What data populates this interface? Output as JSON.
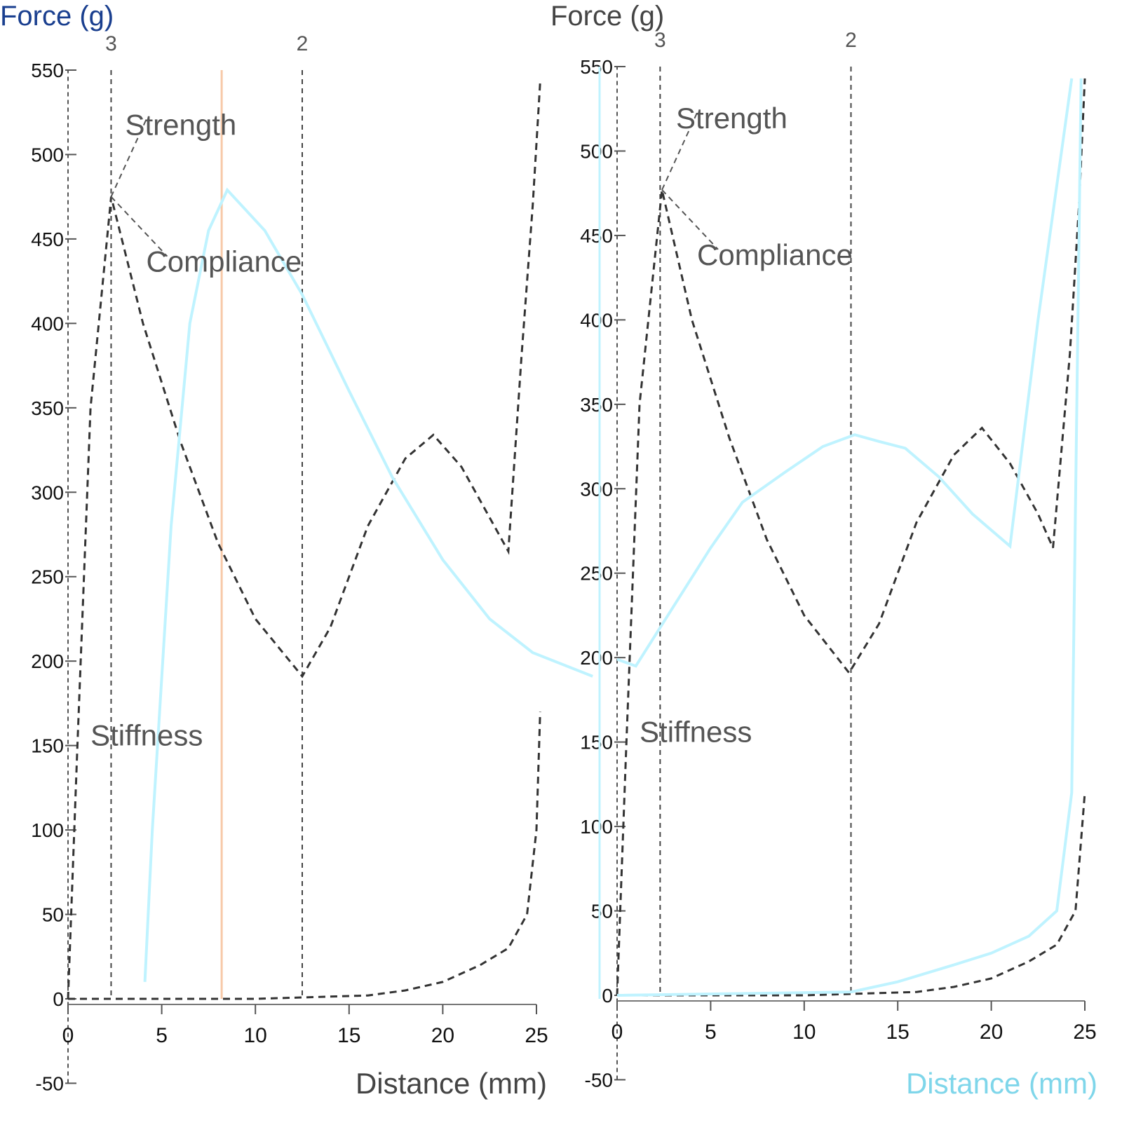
{
  "chart_data": [
    {
      "type": "line",
      "title": "",
      "xlabel": "Distance (mm)",
      "ylabel": "Force (g)",
      "xlim": [
        0,
        25
      ],
      "ylim": [
        -50,
        550
      ],
      "xticks": [
        0,
        5,
        10,
        15,
        20,
        25
      ],
      "yticks": [
        -50,
        0,
        50,
        100,
        150,
        200,
        250,
        300,
        350,
        400,
        450,
        500,
        550
      ],
      "grid": false,
      "markers": [
        {
          "x": 2.3,
          "label": "3"
        },
        {
          "x": 12.5,
          "label": "2"
        }
      ],
      "highlight_x": 8.2,
      "annotations": [
        {
          "text": "Strength",
          "x": 2.3,
          "y": 475
        },
        {
          "text": "Compliance",
          "x": 2.3,
          "y": 475
        },
        {
          "text": "Stiffness",
          "x": 1.0,
          "y": 150
        }
      ],
      "series": [
        {
          "style": "dashed",
          "color": "#333333",
          "x": [
            0,
            0.5,
            1.2,
            2.3,
            4,
            6,
            8,
            10,
            12.5,
            14,
            16,
            18,
            19.5,
            21,
            22.5,
            23.5,
            24.2,
            24.8,
            25.2
          ],
          "y": [
            0,
            150,
            350,
            475,
            400,
            330,
            270,
            225,
            191,
            220,
            280,
            320,
            334,
            315,
            285,
            265,
            380,
            470,
            543
          ]
        },
        {
          "style": "dashed",
          "color": "#333333",
          "x": [
            0,
            10,
            16,
            18,
            20,
            22,
            23.5,
            24.5,
            25,
            25.2
          ],
          "y": [
            0,
            0,
            2,
            5,
            10,
            20,
            30,
            50,
            100,
            170
          ]
        },
        {
          "style": "solid",
          "color": "#bff3ff",
          "x": [
            4.1,
            4.5,
            5.5,
            6.5,
            7.5,
            8.5,
            10.5,
            12.5,
            15,
            17.3,
            20,
            22.5,
            24.8,
            28
          ],
          "y": [
            10,
            100,
            280,
            400,
            455,
            479,
            455,
            417,
            360,
            309,
            260,
            225,
            205,
            191
          ]
        }
      ]
    },
    {
      "type": "line",
      "title": "",
      "xlabel": "Distance (mm)",
      "ylabel": "Force (g)",
      "xlim": [
        0,
        25
      ],
      "ylim": [
        -50,
        550
      ],
      "xticks": [
        0,
        5,
        10,
        15,
        20,
        25
      ],
      "yticks": [
        -50,
        0,
        50,
        100,
        150,
        200,
        250,
        300,
        350,
        400,
        450,
        500,
        550
      ],
      "grid": false,
      "markers": [
        {
          "x": 2.3,
          "label": "3"
        },
        {
          "x": 12.5,
          "label": "2"
        }
      ],
      "annotations": [
        {
          "text": "Strength",
          "x": 2.4,
          "y": 477
        },
        {
          "text": "Compliance",
          "x": 2.4,
          "y": 477
        },
        {
          "text": "Stiffness",
          "x": 1.0,
          "y": 150
        }
      ],
      "series": [
        {
          "style": "dashed",
          "color": "#333333",
          "x": [
            0,
            0.5,
            1.2,
            2.4,
            4,
            6,
            8,
            10,
            12.4,
            14,
            16,
            18,
            19.5,
            21,
            22.5,
            23.3,
            24.2,
            24.7,
            25
          ],
          "y": [
            0,
            150,
            350,
            477,
            400,
            330,
            270,
            225,
            191,
            220,
            280,
            320,
            336,
            315,
            285,
            265,
            380,
            470,
            543
          ]
        },
        {
          "style": "dashed",
          "color": "#333333",
          "x": [
            0,
            10,
            16,
            18,
            20,
            22,
            23.5,
            24.5,
            25
          ],
          "y": [
            0,
            0,
            2,
            5,
            10,
            20,
            30,
            50,
            120
          ]
        },
        {
          "style": "solid",
          "color": "#bff3ff",
          "x": [
            0,
            1,
            3,
            5,
            6.7,
            9,
            11,
            12.7,
            14,
            15.4,
            17.2,
            19,
            21,
            22.5,
            24.3
          ],
          "y": [
            199,
            195,
            230,
            265,
            292,
            310,
            325,
            332,
            328,
            324,
            307,
            285,
            266,
            400,
            543
          ]
        },
        {
          "style": "solid",
          "color": "#bff3ff",
          "x": [
            0,
            12.5,
            15,
            18,
            20,
            22,
            23.5,
            24.3,
            24.8
          ],
          "y": [
            0,
            2,
            8,
            18,
            25,
            35,
            50,
            120,
            543
          ]
        }
      ]
    }
  ]
}
